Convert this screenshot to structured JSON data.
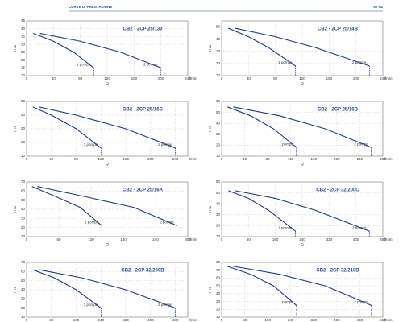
{
  "header": {
    "title": "CURVE DI PRESTAZIONE",
    "frequency": "50 Hz"
  },
  "chart_data": [
    {
      "type": "line",
      "title": "CB2 - 2CP 25/130",
      "x_label": "l/min",
      "y_label": "H m",
      "q_label": "Q",
      "grid": true,
      "xlim": [
        0,
        240
      ],
      "xticks": [
        0,
        40,
        80,
        120,
        160,
        200,
        240
      ],
      "ylim": [
        10,
        45
      ],
      "yticks": [
        10,
        15,
        20,
        25,
        30,
        35,
        40,
        45
      ],
      "series": [
        {
          "name": "1 pompa",
          "color": "#1d3a8a",
          "x": [
            10,
            40,
            70,
            100
          ],
          "values": [
            37,
            32,
            25,
            15
          ]
        },
        {
          "name": "2 pompe",
          "color": "#1d3a8a",
          "x": [
            20,
            80,
            140,
            200
          ],
          "values": [
            37,
            32,
            25,
            15
          ]
        }
      ]
    },
    {
      "type": "line",
      "title": "CB2 - 2CP 25/14B",
      "x_label": "l/min",
      "y_label": "H m",
      "q_label": "Q",
      "grid": true,
      "xlim": [
        0,
        240
      ],
      "xticks": [
        0,
        40,
        80,
        120,
        160,
        200,
        240
      ],
      "ylim": [
        10,
        55
      ],
      "yticks": [
        10,
        20,
        30,
        40,
        50
      ],
      "series": [
        {
          "name": "1 pompa",
          "color": "#1d3a8a",
          "x": [
            10,
            40,
            70,
            110
          ],
          "values": [
            49,
            42,
            33,
            18
          ]
        },
        {
          "name": "2 pompe",
          "color": "#1d3a8a",
          "x": [
            20,
            80,
            140,
            220
          ],
          "values": [
            49,
            42,
            33,
            18
          ]
        }
      ]
    },
    {
      "type": "line",
      "title": "CB2 - 2CP 25/16C",
      "x_label": "l/min",
      "y_label": "H m",
      "q_label": "Q",
      "grid": true,
      "xlim": [
        0,
        260
      ],
      "xticks": [
        0,
        40,
        80,
        120,
        160,
        200,
        240
      ],
      "ylim": [
        10,
        50
      ],
      "yticks": [
        10,
        20,
        30,
        40,
        50
      ],
      "series": [
        {
          "name": "1 pompa",
          "color": "#1d3a8a",
          "x": [
            10,
            40,
            80,
            120
          ],
          "values": [
            46,
            40,
            30,
            16
          ]
        },
        {
          "name": "2 pompe",
          "color": "#1d3a8a",
          "x": [
            20,
            80,
            160,
            240
          ],
          "values": [
            46,
            40,
            30,
            16
          ]
        }
      ]
    },
    {
      "type": "line",
      "title": "CB2 - 2CP 25/16B",
      "x_label": "l/min",
      "y_label": "H m",
      "q_label": "Q",
      "grid": true,
      "xlim": [
        0,
        280
      ],
      "xticks": [
        0,
        40,
        80,
        120,
        160,
        200,
        240,
        280
      ],
      "ylim": [
        10,
        60
      ],
      "yticks": [
        10,
        20,
        30,
        40,
        50,
        60
      ],
      "series": [
        {
          "name": "1 pompa",
          "color": "#1d3a8a",
          "x": [
            10,
            50,
            90,
            130
          ],
          "values": [
            55,
            47,
            35,
            18
          ]
        },
        {
          "name": "2 pompe",
          "color": "#1d3a8a",
          "x": [
            20,
            100,
            180,
            260
          ],
          "values": [
            55,
            47,
            35,
            18
          ]
        }
      ]
    },
    {
      "type": "line",
      "title": "CB2 - 2CP 25/16A",
      "x_label": "l/min",
      "y_label": "H m",
      "q_label": "Q",
      "grid": true,
      "xlim": [
        0,
        300
      ],
      "xticks": [
        0,
        60,
        120,
        180,
        240,
        300
      ],
      "ylim": [
        10,
        70
      ],
      "yticks": [
        10,
        20,
        30,
        40,
        50,
        60,
        70
      ],
      "series": [
        {
          "name": "1 pompa",
          "color": "#1d3a8a",
          "x": [
            10,
            50,
            100,
            140
          ],
          "values": [
            65,
            55,
            42,
            22
          ]
        },
        {
          "name": "2 pompe",
          "color": "#1d3a8a",
          "x": [
            20,
            100,
            200,
            280
          ],
          "values": [
            65,
            55,
            42,
            22
          ]
        }
      ]
    },
    {
      "type": "line",
      "title": "CB2 - 2CP 32/200C",
      "x_label": "l/min",
      "y_label": "H m",
      "q_label": "Q",
      "grid": true,
      "xlim": [
        0,
        480
      ],
      "xticks": [
        0,
        80,
        160,
        240,
        320,
        400,
        480
      ],
      "ylim": [
        10,
        60
      ],
      "yticks": [
        10,
        20,
        30,
        40,
        50,
        60
      ],
      "series": [
        {
          "name": "1 pompa",
          "color": "#1d3a8a",
          "x": [
            20,
            80,
            140,
            220
          ],
          "values": [
            52,
            45,
            34,
            15
          ]
        },
        {
          "name": "2 pompe",
          "color": "#1d3a8a",
          "x": [
            40,
            160,
            280,
            440
          ],
          "values": [
            52,
            45,
            34,
            15
          ]
        }
      ]
    },
    {
      "type": "line",
      "title": "CB2 - 2CP 32/200B",
      "x_label": "l/min",
      "y_label": "H m",
      "q_label": "Q",
      "grid": true,
      "xlim": [
        0,
        520
      ],
      "xticks": [
        0,
        80,
        160,
        240,
        320,
        400,
        480
      ],
      "ylim": [
        10,
        70
      ],
      "yticks": [
        10,
        20,
        30,
        40,
        50,
        60,
        70
      ],
      "series": [
        {
          "name": "1 pompa",
          "color": "#1d3a8a",
          "x": [
            20,
            90,
            160,
            240
          ],
          "values": [
            62,
            53,
            40,
            20
          ]
        },
        {
          "name": "2 pompe",
          "color": "#1d3a8a",
          "x": [
            40,
            180,
            320,
            480
          ],
          "values": [
            62,
            53,
            40,
            20
          ]
        }
      ]
    },
    {
      "type": "line",
      "title": "CB2 - 2CP 32/210B",
      "x_label": "l/min",
      "y_label": "H m",
      "q_label": "Q",
      "grid": true,
      "xlim": [
        0,
        560
      ],
      "xticks": [
        0,
        80,
        160,
        240,
        320,
        400,
        480,
        560
      ],
      "ylim": [
        10,
        80
      ],
      "yticks": [
        10,
        20,
        30,
        40,
        50,
        60,
        70,
        80
      ],
      "series": [
        {
          "name": "1 pompa",
          "color": "#1d3a8a",
          "x": [
            20,
            100,
            180,
            260
          ],
          "values": [
            75,
            65,
            50,
            25
          ]
        },
        {
          "name": "2 pompe",
          "color": "#1d3a8a",
          "x": [
            40,
            200,
            360,
            520
          ],
          "values": [
            75,
            65,
            50,
            25
          ]
        }
      ]
    }
  ]
}
